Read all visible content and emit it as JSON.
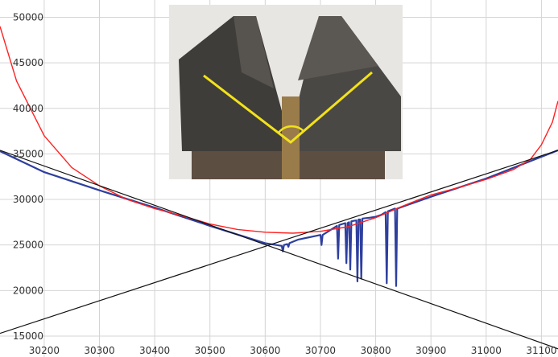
{
  "chart_data": {
    "type": "line",
    "xlim": [
      30120,
      31130
    ],
    "ylim": [
      12700,
      51900
    ],
    "x_ticks": [
      30200,
      30300,
      30400,
      30500,
      30600,
      30700,
      30800,
      30900,
      31000,
      31100
    ],
    "y_ticks": [
      15000,
      20000,
      25000,
      30000,
      35000,
      40000,
      45000,
      50000
    ],
    "grid": true,
    "colors": {
      "fit_curve": "#ff2020",
      "measured": "#2e3f9e",
      "lines": "#111111",
      "grid": "#d4d4d4"
    },
    "series": [
      {
        "style": "red-curve",
        "x": [
          30120,
          30150,
          30200,
          30250,
          30300,
          30350,
          30400,
          30450,
          30500,
          30550,
          30600,
          30650,
          30700,
          30750,
          30800,
          30850,
          30900,
          30950,
          31000,
          31050,
          31080,
          31100,
          31120,
          31130
        ],
        "y": [
          49000,
          43000,
          37000,
          33500,
          31500,
          30000,
          29000,
          28200,
          27300,
          26700,
          26400,
          26300,
          26500,
          27000,
          28000,
          29300,
          30500,
          31300,
          32200,
          33300,
          34400,
          36000,
          38500,
          40800
        ]
      },
      {
        "style": "blue-measured",
        "x": [
          30120,
          30200,
          30300,
          30400,
          30500,
          30600,
          30620,
          30630,
          30632,
          30634,
          30640,
          30642,
          30644,
          30660,
          30700,
          30702,
          30704,
          30730,
          30732,
          30734,
          30745,
          30747,
          30749,
          30752,
          30754,
          30756,
          30765,
          30767,
          30769,
          30772,
          30774,
          30776,
          30790,
          30800,
          30810,
          30818,
          30820,
          30822,
          30835,
          30837,
          30839,
          30900,
          31000,
          31130
        ],
        "y": [
          35300,
          33000,
          31000,
          29100,
          27100,
          25200,
          25000,
          24900,
          24300,
          25000,
          25100,
          24800,
          25200,
          25600,
          26100,
          25000,
          26100,
          27100,
          23500,
          27200,
          27400,
          23000,
          27400,
          27500,
          22300,
          27600,
          27700,
          21000,
          27800,
          27800,
          21300,
          27900,
          28000,
          28100,
          28300,
          28600,
          20800,
          28700,
          29000,
          20500,
          29000,
          30300,
          32300,
          35400
        ]
      },
      {
        "style": "black-line-descending",
        "x": [
          30120,
          31130
        ],
        "y": [
          35400,
          13600
        ]
      },
      {
        "style": "black-line-ascending",
        "x": [
          30120,
          31130
        ],
        "y": [
          15300,
          35400
        ]
      }
    ]
  },
  "photo": {
    "accent": "#f2e21a",
    "left_block": "#3e3c39",
    "right_block": "#4a4845",
    "background": "#e7e5e2"
  }
}
